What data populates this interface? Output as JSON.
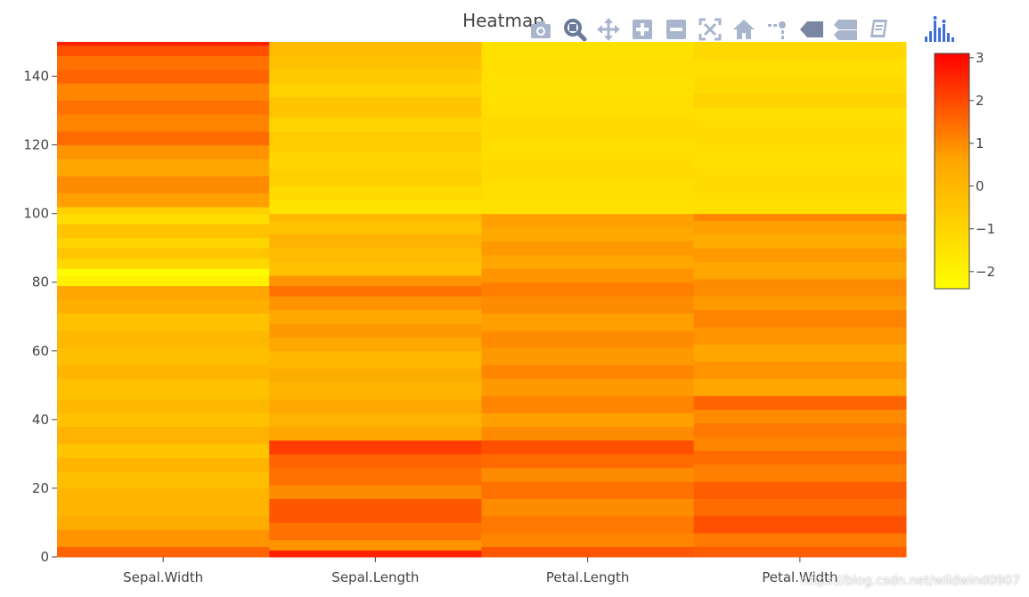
{
  "chart_data": {
    "type": "heatmap",
    "title": "Heatmap",
    "x_categories": [
      "Sepal.Width",
      "Sepal.Length",
      "Petal.Length",
      "Petal.Width"
    ],
    "y_range": [
      0,
      150
    ],
    "y_ticks": [
      0,
      20,
      40,
      60,
      80,
      100,
      120,
      140
    ],
    "colorscale": [
      "#ffff00",
      "#ffa500",
      "#ff0000"
    ],
    "zlim": [
      -2.4,
      3.1
    ],
    "colorbar_ticks": [
      3,
      2,
      1,
      0,
      -1,
      -2
    ],
    "colorbar_tick_labels": [
      "3",
      "2",
      "1",
      "0",
      "−1",
      "−2"
    ],
    "columns": [
      {
        "name": "Sepal.Width",
        "segments": [
          {
            "y": [
              0,
              3
            ],
            "z": 1.6
          },
          {
            "y": [
              3,
              8
            ],
            "z": 0.9
          },
          {
            "y": [
              8,
              12
            ],
            "z": 0.4
          },
          {
            "y": [
              12,
              20
            ],
            "z": 0.1
          },
          {
            "y": [
              20,
              25
            ],
            "z": -0.2
          },
          {
            "y": [
              25,
              29
            ],
            "z": 0.1
          },
          {
            "y": [
              29,
              33
            ],
            "z": -0.5
          },
          {
            "y": [
              33,
              38
            ],
            "z": 0.2
          },
          {
            "y": [
              38,
              42
            ],
            "z": -0.3
          },
          {
            "y": [
              42,
              46
            ],
            "z": 0.0
          },
          {
            "y": [
              46,
              52
            ],
            "z": -0.3
          },
          {
            "y": [
              52,
              56
            ],
            "z": 0.1
          },
          {
            "y": [
              56,
              61
            ],
            "z": -0.2
          },
          {
            "y": [
              61,
              66
            ],
            "z": 0.0
          },
          {
            "y": [
              66,
              71
            ],
            "z": -0.3
          },
          {
            "y": [
              71,
              75
            ],
            "z": 0.3
          },
          {
            "y": [
              75,
              79
            ],
            "z": 0.6
          },
          {
            "y": [
              79,
              82
            ],
            "z": -1.9
          },
          {
            "y": [
              82,
              84
            ],
            "z": -2.3
          },
          {
            "y": [
              84,
              87
            ],
            "z": -1.1
          },
          {
            "y": [
              87,
              90
            ],
            "z": -0.5
          },
          {
            "y": [
              90,
              93
            ],
            "z": -1.0
          },
          {
            "y": [
              93,
              97
            ],
            "z": -0.4
          },
          {
            "y": [
              97,
              100
            ],
            "z": -1.3
          },
          {
            "y": [
              100,
              102
            ],
            "z": -0.8
          },
          {
            "y": [
              102,
              106
            ],
            "z": 0.7
          },
          {
            "y": [
              106,
              111
            ],
            "z": 1.0
          },
          {
            "y": [
              111,
              116
            ],
            "z": 0.6
          },
          {
            "y": [
              116,
              120
            ],
            "z": 0.9
          },
          {
            "y": [
              120,
              124
            ],
            "z": 1.5
          },
          {
            "y": [
              124,
              129
            ],
            "z": 1.1
          },
          {
            "y": [
              129,
              133
            ],
            "z": 1.4
          },
          {
            "y": [
              133,
              138
            ],
            "z": 1.1
          },
          {
            "y": [
              138,
              142
            ],
            "z": 1.6
          },
          {
            "y": [
              142,
              146
            ],
            "z": 1.4
          },
          {
            "y": [
              146,
              149
            ],
            "z": 1.9
          },
          {
            "y": [
              149,
              150
            ],
            "z": 2.6
          }
        ]
      },
      {
        "name": "Sepal.Length",
        "segments": [
          {
            "y": [
              0,
              2
            ],
            "z": 2.6
          },
          {
            "y": [
              2,
              5
            ],
            "z": 0.9
          },
          {
            "y": [
              5,
              10
            ],
            "z": 1.4
          },
          {
            "y": [
              10,
              17
            ],
            "z": 1.8
          },
          {
            "y": [
              17,
              21
            ],
            "z": 1.0
          },
          {
            "y": [
              21,
              26
            ],
            "z": 1.4
          },
          {
            "y": [
              26,
              30
            ],
            "z": 1.6
          },
          {
            "y": [
              30,
              34
            ],
            "z": 2.2
          },
          {
            "y": [
              34,
              38
            ],
            "z": 0.6
          },
          {
            "y": [
              38,
              42
            ],
            "z": 0.2
          },
          {
            "y": [
              42,
              46
            ],
            "z": 0.5
          },
          {
            "y": [
              46,
              51
            ],
            "z": 0.1
          },
          {
            "y": [
              51,
              55
            ],
            "z": 0.4
          },
          {
            "y": [
              55,
              60
            ],
            "z": 0.0
          },
          {
            "y": [
              60,
              64
            ],
            "z": 0.5
          },
          {
            "y": [
              64,
              68
            ],
            "z": 0.8
          },
          {
            "y": [
              68,
              72
            ],
            "z": 0.5
          },
          {
            "y": [
              72,
              76
            ],
            "z": 0.9
          },
          {
            "y": [
              76,
              79
            ],
            "z": 1.4
          },
          {
            "y": [
              79,
              82
            ],
            "z": 0.9
          },
          {
            "y": [
              82,
              86
            ],
            "z": -0.3
          },
          {
            "y": [
              86,
              90
            ],
            "z": -0.1
          },
          {
            "y": [
              90,
              94
            ],
            "z": 0.2
          },
          {
            "y": [
              94,
              98
            ],
            "z": -0.4
          },
          {
            "y": [
              98,
              100
            ],
            "z": 0.0
          },
          {
            "y": [
              100,
              104
            ],
            "z": -1.5
          },
          {
            "y": [
              104,
              108
            ],
            "z": -1.2
          },
          {
            "y": [
              108,
              113
            ],
            "z": -0.8
          },
          {
            "y": [
              113,
              118
            ],
            "z": -1.0
          },
          {
            "y": [
              118,
              124
            ],
            "z": -0.7
          },
          {
            "y": [
              124,
              128
            ],
            "z": -1.0
          },
          {
            "y": [
              128,
              134
            ],
            "z": -0.5
          },
          {
            "y": [
              134,
              138
            ],
            "z": -0.9
          },
          {
            "y": [
              138,
              142
            ],
            "z": -0.6
          },
          {
            "y": [
              142,
              146
            ],
            "z": -0.3
          },
          {
            "y": [
              146,
              150
            ],
            "z": -0.1
          }
        ]
      },
      {
        "name": "Petal.Length",
        "segments": [
          {
            "y": [
              0,
              3
            ],
            "z": 1.8
          },
          {
            "y": [
              3,
              7
            ],
            "z": 1.1
          },
          {
            "y": [
              7,
              12
            ],
            "z": 1.3
          },
          {
            "y": [
              12,
              17
            ],
            "z": 1.0
          },
          {
            "y": [
              17,
              22
            ],
            "z": 1.4
          },
          {
            "y": [
              22,
              26
            ],
            "z": 1.0
          },
          {
            "y": [
              26,
              30
            ],
            "z": 1.5
          },
          {
            "y": [
              30,
              34
            ],
            "z": 1.9
          },
          {
            "y": [
              34,
              38
            ],
            "z": 1.0
          },
          {
            "y": [
              38,
              42
            ],
            "z": 0.7
          },
          {
            "y": [
              42,
              47
            ],
            "z": 1.1
          },
          {
            "y": [
              47,
              52
            ],
            "z": 0.8
          },
          {
            "y": [
              52,
              56
            ],
            "z": 1.1
          },
          {
            "y": [
              56,
              61
            ],
            "z": 0.8
          },
          {
            "y": [
              61,
              66
            ],
            "z": 1.0
          },
          {
            "y": [
              66,
              71
            ],
            "z": 0.7
          },
          {
            "y": [
              71,
              76
            ],
            "z": 1.0
          },
          {
            "y": [
              76,
              80
            ],
            "z": 1.2
          },
          {
            "y": [
              80,
              84
            ],
            "z": 0.9
          },
          {
            "y": [
              84,
              88
            ],
            "z": 0.6
          },
          {
            "y": [
              88,
              92
            ],
            "z": 0.8
          },
          {
            "y": [
              92,
              96
            ],
            "z": 0.5
          },
          {
            "y": [
              96,
              100
            ],
            "z": 0.7
          },
          {
            "y": [
              100,
              104
            ],
            "z": -1.4
          },
          {
            "y": [
              104,
              110
            ],
            "z": -1.3
          },
          {
            "y": [
              110,
              116
            ],
            "z": -1.2
          },
          {
            "y": [
              116,
              122
            ],
            "z": -1.3
          },
          {
            "y": [
              122,
              128
            ],
            "z": -1.2
          },
          {
            "y": [
              128,
              134
            ],
            "z": -1.3
          },
          {
            "y": [
              134,
              140
            ],
            "z": -1.4
          },
          {
            "y": [
              140,
              145
            ],
            "z": -1.3
          },
          {
            "y": [
              145,
              150
            ],
            "z": -1.4
          }
        ]
      },
      {
        "name": "Petal.Width",
        "segments": [
          {
            "y": [
              0,
              3
            ],
            "z": 1.7
          },
          {
            "y": [
              3,
              7
            ],
            "z": 1.3
          },
          {
            "y": [
              7,
              12
            ],
            "z": 1.9
          },
          {
            "y": [
              12,
              17
            ],
            "z": 1.5
          },
          {
            "y": [
              17,
              22
            ],
            "z": 1.7
          },
          {
            "y": [
              22,
              27
            ],
            "z": 1.2
          },
          {
            "y": [
              27,
              31
            ],
            "z": 1.5
          },
          {
            "y": [
              31,
              35
            ],
            "z": 1.1
          },
          {
            "y": [
              35,
              39
            ],
            "z": 1.3
          },
          {
            "y": [
              39,
              43
            ],
            "z": 1.0
          },
          {
            "y": [
              43,
              47
            ],
            "z": 1.6
          },
          {
            "y": [
              47,
              52
            ],
            "z": 0.6
          },
          {
            "y": [
              52,
              57
            ],
            "z": 0.9
          },
          {
            "y": [
              57,
              62
            ],
            "z": 0.6
          },
          {
            "y": [
              62,
              67
            ],
            "z": 0.9
          },
          {
            "y": [
              67,
              72
            ],
            "z": 1.1
          },
          {
            "y": [
              72,
              76
            ],
            "z": 0.8
          },
          {
            "y": [
              76,
              81
            ],
            "z": 1.0
          },
          {
            "y": [
              81,
              86
            ],
            "z": 0.6
          },
          {
            "y": [
              86,
              90
            ],
            "z": 0.8
          },
          {
            "y": [
              90,
              94
            ],
            "z": 0.4
          },
          {
            "y": [
              94,
              98
            ],
            "z": 0.7
          },
          {
            "y": [
              98,
              100
            ],
            "z": 1.1
          },
          {
            "y": [
              100,
              106
            ],
            "z": -1.3
          },
          {
            "y": [
              106,
              113
            ],
            "z": -1.2
          },
          {
            "y": [
              113,
              120
            ],
            "z": -1.3
          },
          {
            "y": [
              120,
              127
            ],
            "z": -1.2
          },
          {
            "y": [
              127,
              131
            ],
            "z": -1.3
          },
          {
            "y": [
              131,
              135
            ],
            "z": -0.9
          },
          {
            "y": [
              135,
              140
            ],
            "z": -1.2
          },
          {
            "y": [
              140,
              145
            ],
            "z": -1.3
          },
          {
            "y": [
              145,
              150
            ],
            "z": -1.1
          }
        ]
      }
    ]
  },
  "modebar": {
    "buttons": [
      {
        "name": "camera-icon",
        "title": "Download plot as a png"
      },
      {
        "name": "zoom-icon",
        "title": "Zoom"
      },
      {
        "name": "pan-icon",
        "title": "Pan"
      },
      {
        "name": "zoom-in-icon",
        "title": "Zoom in"
      },
      {
        "name": "zoom-out-icon",
        "title": "Zoom out"
      },
      {
        "name": "autoscale-icon",
        "title": "Autoscale"
      },
      {
        "name": "home-icon",
        "title": "Reset axes"
      },
      {
        "name": "spike-lines-icon",
        "title": "Toggle Spike Lines"
      },
      {
        "name": "hover-closest-icon",
        "title": "Show closest data on hover"
      },
      {
        "name": "hover-compare-icon",
        "title": "Compare data on hover"
      },
      {
        "name": "edit-in-chart-studio-icon",
        "title": "Edit in Chart Studio"
      },
      {
        "name": "plotly-logo-icon",
        "title": "Produced with Plotly"
      }
    ],
    "icon_color": "#a9b5cc",
    "logo_color": "#3f6fd8"
  },
  "watermark": "https://blog.csdn.net/wildwind0907"
}
